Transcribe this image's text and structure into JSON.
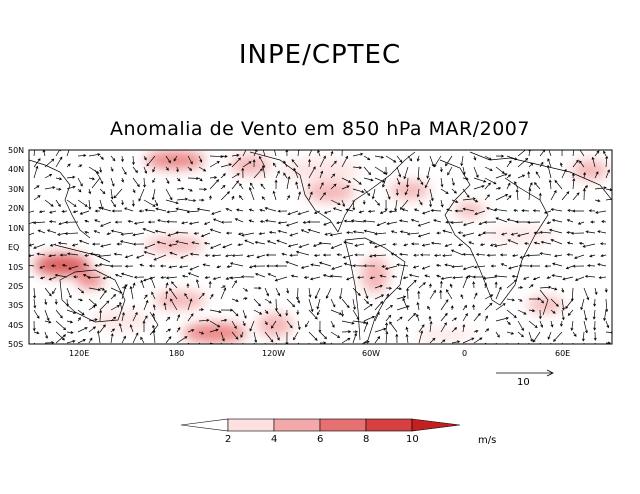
{
  "header": {
    "title": "INPE/CPTEC"
  },
  "map": {
    "title": "Anomalia de Vento em 850 hPa MAR/2007",
    "lat_labels": [
      "50N",
      "40N",
      "30N",
      "20N",
      "10N",
      "EQ",
      "10S",
      "20S",
      "30S",
      "40S",
      "50S"
    ],
    "lon_labels": [
      "120E",
      "180",
      "120W",
      "60W",
      "0",
      "60E"
    ],
    "vector_scale": {
      "label": "10"
    }
  },
  "colorbar": {
    "levels": [
      "2",
      "4",
      "6",
      "8",
      "10"
    ],
    "units": "m/s",
    "colors": [
      "#ffffff",
      "#fde0e0",
      "#f3a9a9",
      "#e77070",
      "#d64040",
      "#c42020"
    ]
  }
}
